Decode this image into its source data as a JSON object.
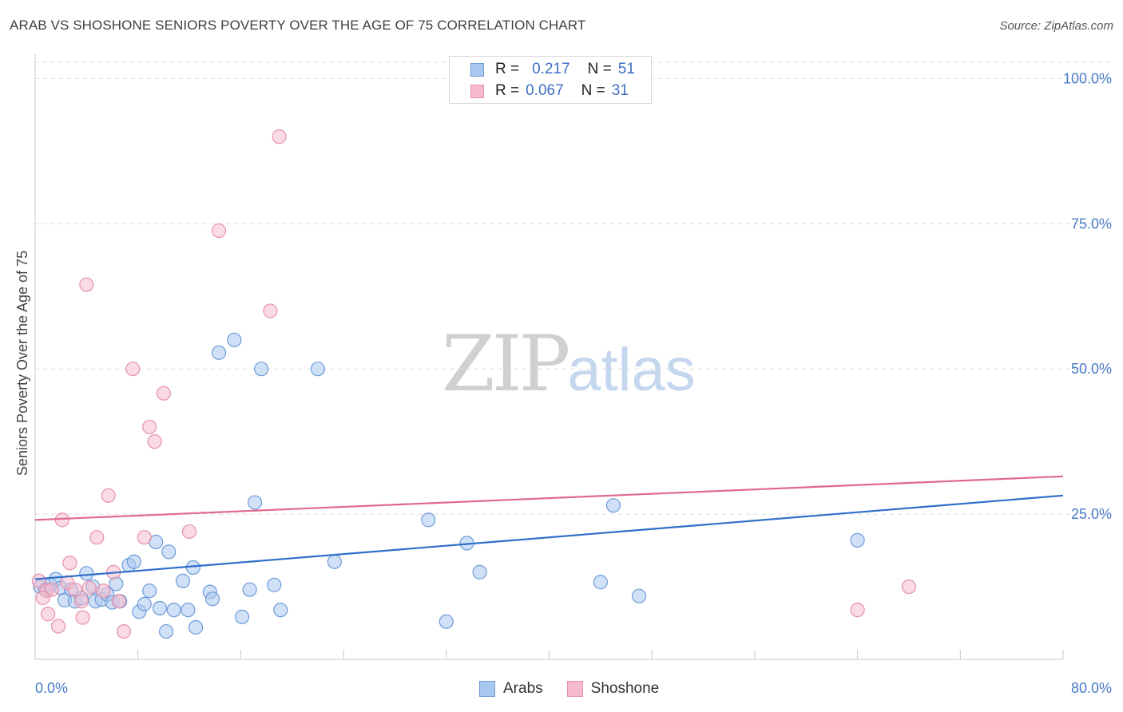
{
  "header": {
    "title": "ARAB VS SHOSHONE SENIORS POVERTY OVER THE AGE OF 75 CORRELATION CHART",
    "source": "Source: ZipAtlas.com"
  },
  "watermark": {
    "zip": "ZIP",
    "atlas": "atlas"
  },
  "legend": {
    "rows": [
      {
        "r_label": "R =",
        "r_value": "0.217",
        "n_label": "N =",
        "n_value": "51"
      },
      {
        "r_label": "R =",
        "r_value": "0.067",
        "n_label": "N =",
        "n_value": "31"
      }
    ]
  },
  "bottom_legend": {
    "arabs": "Arabs",
    "shoshone": "Shoshone"
  },
  "colors": {
    "arabs_fill": "#a9c8f0",
    "arabs_stroke": "#6e9bd8",
    "arabs_line": "#2f6fc9",
    "shoshone_fill": "#f6bccd",
    "shoshone_stroke": "#e592ac",
    "shoshone_line": "#e0698f",
    "tick_text": "#4a7bc8",
    "grid": "#dddddd"
  },
  "chart_data": {
    "type": "scatter",
    "title": "ARAB VS SHOSHONE SENIORS POVERTY OVER THE AGE OF 75 CORRELATION CHART",
    "xlabel": "",
    "ylabel": "Seniors Poverty Over the Age of 75",
    "xlim": [
      0,
      80
    ],
    "ylim": [
      0,
      105
    ],
    "x_tick_labels": [
      "0.0%",
      "80.0%"
    ],
    "y_ticks": [
      25,
      50,
      75,
      100
    ],
    "y_tick_labels": [
      "25.0%",
      "50.0%",
      "75.0%",
      "100.0%"
    ],
    "grid": true,
    "series": [
      {
        "name": "Arabs",
        "trend": [
          [
            0,
            13.8
          ],
          [
            80,
            28.2
          ]
        ],
        "points": [
          [
            0.4,
            12.5
          ],
          [
            0.8,
            12.0
          ],
          [
            1.2,
            12.8
          ],
          [
            1.6,
            13.8
          ],
          [
            2.0,
            12.3
          ],
          [
            2.3,
            10.2
          ],
          [
            2.8,
            12.0
          ],
          [
            3.1,
            10.0
          ],
          [
            3.6,
            10.5
          ],
          [
            4.0,
            14.8
          ],
          [
            4.5,
            12.5
          ],
          [
            4.7,
            10.0
          ],
          [
            5.2,
            10.3
          ],
          [
            5.6,
            11.2
          ],
          [
            6.0,
            9.8
          ],
          [
            6.3,
            13.0
          ],
          [
            6.6,
            10.0
          ],
          [
            7.3,
            16.2
          ],
          [
            7.7,
            16.8
          ],
          [
            8.1,
            8.2
          ],
          [
            8.5,
            9.5
          ],
          [
            8.9,
            11.8
          ],
          [
            9.4,
            20.2
          ],
          [
            9.7,
            8.8
          ],
          [
            10.2,
            4.8
          ],
          [
            10.4,
            18.5
          ],
          [
            10.8,
            8.5
          ],
          [
            11.5,
            13.5
          ],
          [
            11.9,
            8.5
          ],
          [
            12.3,
            15.8
          ],
          [
            12.5,
            5.5
          ],
          [
            13.6,
            11.6
          ],
          [
            13.8,
            10.4
          ],
          [
            14.3,
            52.8
          ],
          [
            15.5,
            55.0
          ],
          [
            16.1,
            7.3
          ],
          [
            16.7,
            12.0
          ],
          [
            17.1,
            27.0
          ],
          [
            17.6,
            50.0
          ],
          [
            18.6,
            12.8
          ],
          [
            19.1,
            8.5
          ],
          [
            22.0,
            50.0
          ],
          [
            23.3,
            16.8
          ],
          [
            30.6,
            24.0
          ],
          [
            32.0,
            6.5
          ],
          [
            33.6,
            20.0
          ],
          [
            34.6,
            15.0
          ],
          [
            44.0,
            13.3
          ],
          [
            45.0,
            26.5
          ],
          [
            47.0,
            10.9
          ],
          [
            64.0,
            20.5
          ]
        ]
      },
      {
        "name": "Shoshone",
        "trend": [
          [
            0,
            24.0
          ],
          [
            80,
            31.5
          ]
        ],
        "points": [
          [
            0.3,
            13.5
          ],
          [
            0.9,
            11.8
          ],
          [
            1.0,
            7.8
          ],
          [
            1.3,
            12.0
          ],
          [
            1.8,
            5.7
          ],
          [
            2.1,
            24.0
          ],
          [
            2.5,
            13.2
          ],
          [
            2.7,
            16.6
          ],
          [
            3.1,
            12.0
          ],
          [
            3.6,
            10.0
          ],
          [
            3.7,
            7.2
          ],
          [
            4.0,
            64.5
          ],
          [
            4.2,
            12.3
          ],
          [
            4.8,
            21.0
          ],
          [
            5.3,
            11.8
          ],
          [
            5.7,
            28.2
          ],
          [
            6.1,
            15.0
          ],
          [
            6.5,
            10.0
          ],
          [
            6.9,
            4.8
          ],
          [
            7.6,
            50.0
          ],
          [
            8.5,
            21.0
          ],
          [
            8.9,
            40.0
          ],
          [
            9.3,
            37.5
          ],
          [
            10.0,
            45.8
          ],
          [
            12.0,
            22.0
          ],
          [
            14.3,
            73.8
          ],
          [
            18.3,
            60.0
          ],
          [
            19.0,
            90.0
          ],
          [
            64.0,
            8.5
          ],
          [
            68.0,
            12.5
          ],
          [
            0.6,
            10.6
          ]
        ]
      }
    ]
  }
}
